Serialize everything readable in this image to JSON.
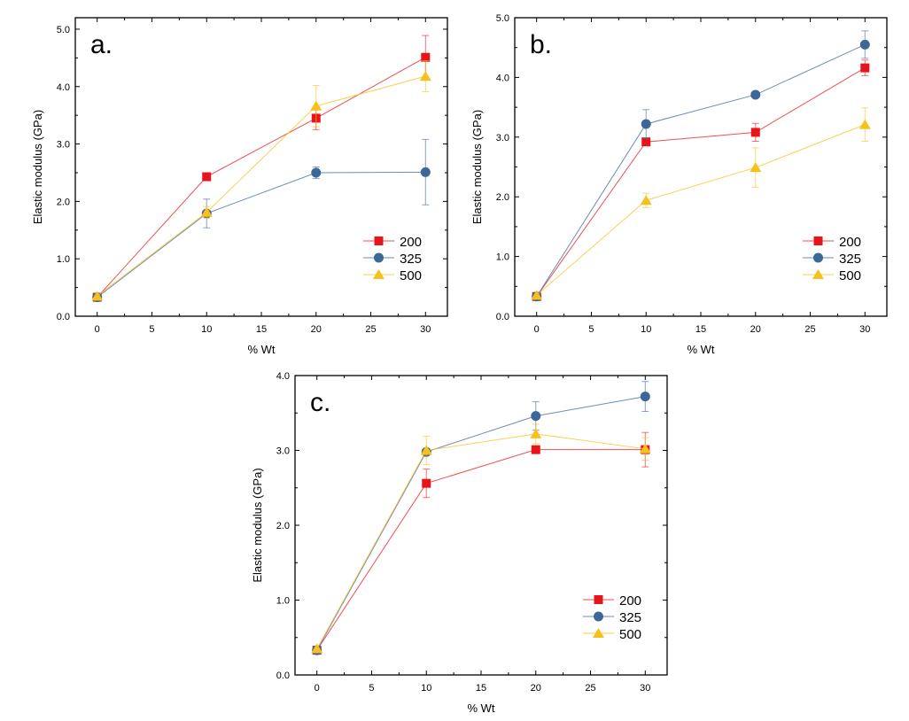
{
  "colors": {
    "200": "#e8141c",
    "325": "#3b6799",
    "500": "#f8c01a"
  },
  "chart_data": [
    {
      "type": "line",
      "panel_label": "a.",
      "xlabel": "% Wt",
      "ylabel": "Elastic modulus (GPa)",
      "xlim": [
        -2,
        32
      ],
      "ylim": [
        0,
        5.2
      ],
      "xticks": [
        0,
        5,
        10,
        15,
        20,
        25,
        30
      ],
      "yticks": [
        0,
        1,
        2,
        3,
        4,
        5
      ],
      "ytick_labels": [
        "0.0",
        "1.0",
        "2.0",
        "3.0",
        "4.0",
        "5.0"
      ],
      "legend": "lower-right",
      "x": [
        0,
        10,
        20,
        30
      ],
      "series": [
        {
          "name": "200",
          "marker": "square",
          "values": [
            0.33,
            2.43,
            3.45,
            4.51
          ],
          "errors": [
            0,
            0,
            0.2,
            0.38
          ]
        },
        {
          "name": "325",
          "marker": "circle",
          "values": [
            0.33,
            1.79,
            2.5,
            2.51
          ],
          "errors": [
            0,
            0.25,
            0.1,
            0.57
          ]
        },
        {
          "name": "500",
          "marker": "triangle",
          "values": [
            0.35,
            1.81,
            3.66,
            4.18
          ],
          "errors": [
            0,
            0.1,
            0.36,
            0.27
          ]
        }
      ]
    },
    {
      "type": "line",
      "panel_label": "b.",
      "xlabel": "% Wt",
      "ylabel": "Elastic modulus (GPa)",
      "xlim": [
        -2,
        32
      ],
      "ylim": [
        0,
        5.0
      ],
      "xticks": [
        0,
        5,
        10,
        15,
        20,
        25,
        30
      ],
      "yticks": [
        0,
        1,
        2,
        3,
        4,
        5
      ],
      "ytick_labels": [
        "0.0",
        "1.0",
        "2.0",
        "3.0",
        "4.0",
        "5.0"
      ],
      "legend": "lower-right",
      "x": [
        0,
        10,
        20,
        30
      ],
      "series": [
        {
          "name": "200",
          "marker": "square",
          "values": [
            0.33,
            2.92,
            3.08,
            4.16
          ],
          "errors": [
            0,
            0,
            0.15,
            0.13
          ]
        },
        {
          "name": "325",
          "marker": "circle",
          "values": [
            0.33,
            3.22,
            3.71,
            4.55
          ],
          "errors": [
            0,
            0.24,
            0,
            0.23
          ]
        },
        {
          "name": "500",
          "marker": "triangle",
          "values": [
            0.35,
            1.94,
            2.49,
            3.21
          ],
          "errors": [
            0,
            0.12,
            0.33,
            0.28
          ]
        }
      ]
    },
    {
      "type": "line",
      "panel_label": "c.",
      "xlabel": "% Wt",
      "ylabel": "Elastic modulus (GPa)",
      "xlim": [
        -2,
        32
      ],
      "ylim": [
        0,
        4.0
      ],
      "xticks": [
        0,
        5,
        10,
        15,
        20,
        25,
        30
      ],
      "yticks": [
        0,
        1,
        2,
        3,
        4
      ],
      "ytick_labels": [
        "0.0",
        "1.0",
        "2.0",
        "3.0",
        "4.0"
      ],
      "legend": "lower-right",
      "x": [
        0,
        10,
        20,
        30
      ],
      "series": [
        {
          "name": "200",
          "marker": "square",
          "values": [
            0.33,
            2.56,
            3.01,
            3.01
          ],
          "errors": [
            0,
            0.19,
            0,
            0.23
          ]
        },
        {
          "name": "325",
          "marker": "circle",
          "values": [
            0.33,
            2.98,
            3.46,
            3.72
          ],
          "errors": [
            0,
            0,
            0.19,
            0.2
          ]
        },
        {
          "name": "500",
          "marker": "triangle",
          "values": [
            0.35,
            3.0,
            3.22,
            3.02
          ],
          "errors": [
            0,
            0.19,
            0.13,
            0.15
          ]
        }
      ]
    }
  ]
}
